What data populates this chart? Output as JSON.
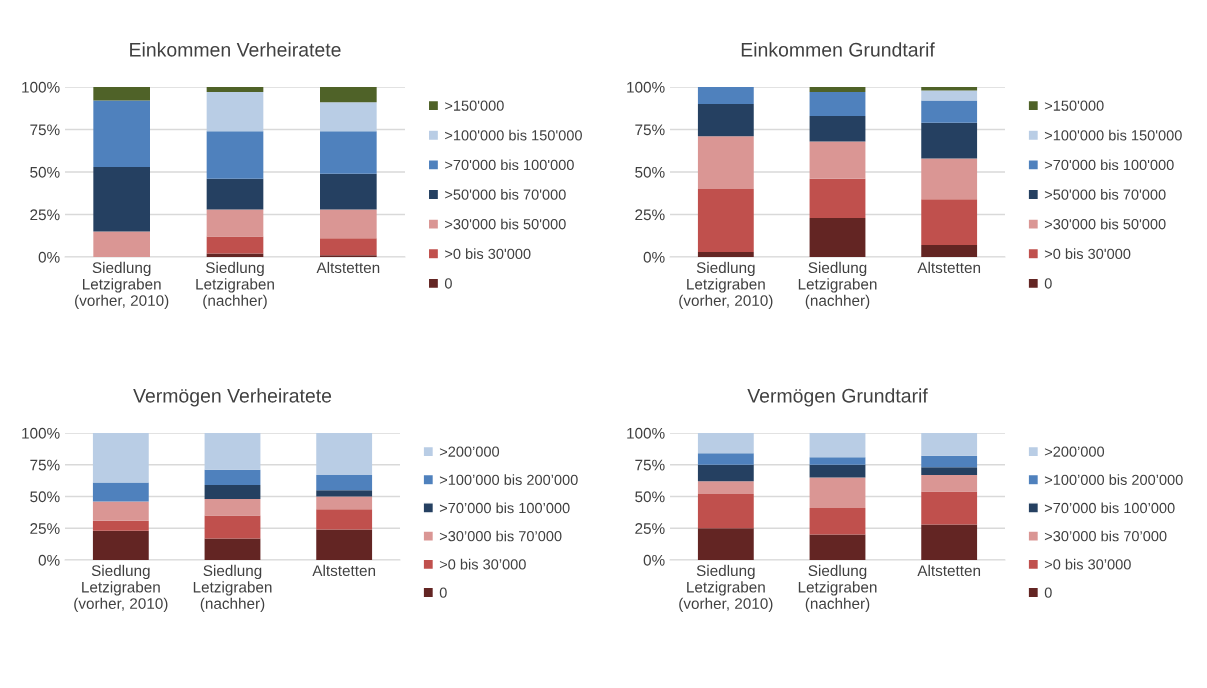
{
  "chart_data": [
    {
      "type": "bar",
      "title": "Einkommen Verheiratete",
      "stacked": true,
      "legend": "right",
      "grid": "y",
      "categories": [
        "Siedlung\nLetzigraben\n(vorher, 2010)",
        "Siedlung\nLetzigraben\n(nachher)",
        "Altstetten"
      ],
      "ylim": [
        0,
        100
      ],
      "yticks": [
        {
          "value": 0,
          "label": "0%"
        },
        {
          "value": 25,
          "label": "25%"
        },
        {
          "value": 50,
          "label": "50%"
        },
        {
          "value": 75,
          "label": "75%"
        },
        {
          "value": 100,
          "label": "100%"
        }
      ],
      "series": [
        {
          "name": "0",
          "color": "#632523",
          "values": [
            0,
            2,
            1
          ]
        },
        {
          "name": ">0 bis 30'000",
          "color": "#c0504d",
          "values": [
            0,
            10,
            10
          ]
        },
        {
          "name": ">30'000 bis 50'000",
          "color": "#da9694",
          "values": [
            15,
            16,
            17
          ]
        },
        {
          "name": ">50'000 bis 70'000",
          "color": "#254061",
          "values": [
            38,
            18,
            21
          ]
        },
        {
          "name": ">70'000 bis 100'000",
          "color": "#4f81bd",
          "values": [
            39,
            28,
            25
          ]
        },
        {
          "name": ">100'000 bis 150'000",
          "color": "#b9cde5",
          "values": [
            0,
            23,
            17
          ]
        },
        {
          "name": ">150'000",
          "color": "#4f6228",
          "values": [
            8,
            3,
            9
          ]
        }
      ]
    },
    {
      "type": "bar",
      "title": "Einkommen Grundtarif",
      "stacked": true,
      "legend": "right",
      "grid": "y",
      "categories": [
        "Siedlung\nLetzigraben\n(vorher, 2010)",
        "Siedlung\nLetzigraben\n(nachher)",
        "Altstetten"
      ],
      "ylim": [
        0,
        100
      ],
      "yticks": [
        {
          "value": 0,
          "label": "0%"
        },
        {
          "value": 25,
          "label": "25%"
        },
        {
          "value": 50,
          "label": "50%"
        },
        {
          "value": 75,
          "label": "75%"
        },
        {
          "value": 100,
          "label": "100%"
        }
      ],
      "series": [
        {
          "name": "0",
          "color": "#632523",
          "values": [
            3,
            23,
            7
          ]
        },
        {
          "name": ">0 bis 30'000",
          "color": "#c0504d",
          "values": [
            37,
            23,
            27
          ]
        },
        {
          "name": ">30'000 bis 50'000",
          "color": "#da9694",
          "values": [
            31,
            22,
            24
          ]
        },
        {
          "name": ">50'000 bis 70'000",
          "color": "#254061",
          "values": [
            19,
            15,
            21
          ]
        },
        {
          "name": ">70'000 bis 100'000",
          "color": "#4f81bd",
          "values": [
            10,
            14,
            13
          ]
        },
        {
          "name": ">100'000 bis 150'000",
          "color": "#b9cde5",
          "values": [
            0,
            0,
            6
          ]
        },
        {
          "name": ">150'000",
          "color": "#4f6228",
          "values": [
            0,
            3,
            2
          ]
        }
      ]
    },
    {
      "type": "bar",
      "title": "Vermögen Verheiratete",
      "stacked": true,
      "legend": "right",
      "grid": "y",
      "categories": [
        "Siedlung\nLetzigraben\n(vorher, 2010)",
        "Siedlung\nLetzigraben\n(nachher)",
        "Altstetten"
      ],
      "ylim": [
        0,
        100
      ],
      "yticks": [
        {
          "value": 0,
          "label": "0%"
        },
        {
          "value": 25,
          "label": "25%"
        },
        {
          "value": 50,
          "label": "50%"
        },
        {
          "value": 75,
          "label": "75%"
        },
        {
          "value": 100,
          "label": "100%"
        }
      ],
      "series": [
        {
          "name": "0",
          "color": "#632523",
          "values": [
            23,
            17,
            24
          ]
        },
        {
          "name": ">0 bis 30’000",
          "color": "#c0504d",
          "values": [
            8,
            18,
            16
          ]
        },
        {
          "name": ">30’000 bis 70’000",
          "color": "#da9694",
          "values": [
            15,
            13,
            10
          ]
        },
        {
          "name": ">70’000 bis 100’000",
          "color": "#254061",
          "values": [
            0,
            11,
            5
          ]
        },
        {
          "name": ">100’000 bis 200’000",
          "color": "#4f81bd",
          "values": [
            15,
            12,
            12
          ]
        },
        {
          "name": ">200’000",
          "color": "#b9cde5",
          "values": [
            39,
            29,
            33
          ]
        }
      ]
    },
    {
      "type": "bar",
      "title": "Vermögen Grundtarif",
      "stacked": true,
      "legend": "right",
      "grid": "y",
      "categories": [
        "Siedlung\nLetzigraben\n(vorher, 2010)",
        "Siedlung\nLetzigraben\n(nachher)",
        "Altstetten"
      ],
      "ylim": [
        0,
        100
      ],
      "yticks": [
        {
          "value": 0,
          "label": "0%"
        },
        {
          "value": 25,
          "label": "25%"
        },
        {
          "value": 50,
          "label": "50%"
        },
        {
          "value": 75,
          "label": "75%"
        },
        {
          "value": 100,
          "label": "100%"
        }
      ],
      "series": [
        {
          "name": "0",
          "color": "#632523",
          "values": [
            25,
            20,
            28
          ]
        },
        {
          "name": ">0 bis 30’000",
          "color": "#c0504d",
          "values": [
            27,
            21,
            26
          ]
        },
        {
          "name": ">30’000 bis 70’000",
          "color": "#da9694",
          "values": [
            10,
            24,
            13
          ]
        },
        {
          "name": ">70’000 bis 100’000",
          "color": "#254061",
          "values": [
            13,
            10,
            6
          ]
        },
        {
          "name": ">100’000 bis 200’000",
          "color": "#4f81bd",
          "values": [
            9,
            6,
            9
          ]
        },
        {
          "name": ">200’000",
          "color": "#b9cde5",
          "values": [
            16,
            19,
            18
          ]
        }
      ]
    }
  ]
}
